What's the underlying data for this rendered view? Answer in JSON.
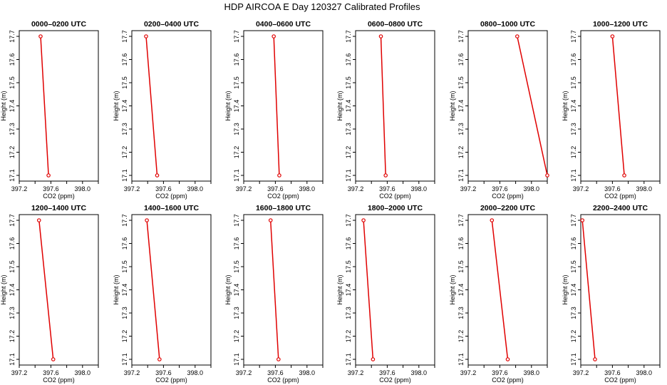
{
  "title": "HDP AIRCOA E  Day 120327  Calibrated Profiles",
  "colors": {
    "series": "#e00000",
    "axis": "#000000",
    "background": "#ffffff"
  },
  "chart_data": [
    {
      "type": "line",
      "title": "0000–0200 UTC",
      "xlabel": "CO2 (ppm)",
      "ylabel": "Height (m)",
      "xlim": [
        397.2,
        398.2
      ],
      "ylim": [
        17.1,
        17.7
      ],
      "xticks": [
        "397.2",
        "397.6",
        "398.0"
      ],
      "yticks": [
        "17.1",
        "17.2",
        "17.3",
        "17.4",
        "17.5",
        "17.6",
        "17.7"
      ],
      "x": [
        397.47,
        397.57
      ],
      "y": [
        17.7,
        17.1
      ]
    },
    {
      "type": "line",
      "title": "0200–0400 UTC",
      "xlabel": "CO2 (ppm)",
      "ylabel": "Height (m)",
      "xlim": [
        397.2,
        398.2
      ],
      "ylim": [
        17.1,
        17.7
      ],
      "xticks": [
        "397.2",
        "397.6",
        "398.0"
      ],
      "yticks": [
        "17.1",
        "17.2",
        "17.3",
        "17.4",
        "17.5",
        "17.6",
        "17.7"
      ],
      "x": [
        397.38,
        397.52
      ],
      "y": [
        17.7,
        17.1
      ]
    },
    {
      "type": "line",
      "title": "0400–0600 UTC",
      "xlabel": "CO2 (ppm)",
      "ylabel": "Height (m)",
      "xlim": [
        397.2,
        398.2
      ],
      "ylim": [
        17.1,
        17.7
      ],
      "xticks": [
        "397.2",
        "397.6",
        "398.0"
      ],
      "yticks": [
        "17.1",
        "17.2",
        "17.3",
        "17.4",
        "17.5",
        "17.6",
        "17.7"
      ],
      "x": [
        397.58,
        397.65
      ],
      "y": [
        17.7,
        17.1
      ]
    },
    {
      "type": "line",
      "title": "0600–0800 UTC",
      "xlabel": "CO2 (ppm)",
      "ylabel": "Height (m)",
      "xlim": [
        397.2,
        398.2
      ],
      "ylim": [
        17.1,
        17.7
      ],
      "xticks": [
        "397.2",
        "397.6",
        "398.0"
      ],
      "yticks": [
        "17.1",
        "17.2",
        "17.3",
        "17.4",
        "17.5",
        "17.6",
        "17.7"
      ],
      "x": [
        397.52,
        397.58
      ],
      "y": [
        17.7,
        17.1
      ]
    },
    {
      "type": "line",
      "title": "0800–1000 UTC",
      "xlabel": "CO2 (ppm)",
      "ylabel": "Height (m)",
      "xlim": [
        397.2,
        398.2
      ],
      "ylim": [
        17.1,
        17.7
      ],
      "xticks": [
        "397.2",
        "397.6",
        "398.0"
      ],
      "yticks": [
        "17.1",
        "17.2",
        "17.3",
        "17.4",
        "17.5",
        "17.6",
        "17.7"
      ],
      "x": [
        397.82,
        398.2
      ],
      "y": [
        17.7,
        17.1
      ]
    },
    {
      "type": "line",
      "title": "1000–1200 UTC",
      "xlabel": "CO2 (ppm)",
      "ylabel": "Height (m)",
      "xlim": [
        397.2,
        398.2
      ],
      "ylim": [
        17.1,
        17.7
      ],
      "xticks": [
        "397.2",
        "397.6",
        "398.0"
      ],
      "yticks": [
        "17.1",
        "17.2",
        "17.3",
        "17.4",
        "17.5",
        "17.6",
        "17.7"
      ],
      "x": [
        397.6,
        397.75
      ],
      "y": [
        17.7,
        17.1
      ]
    },
    {
      "type": "line",
      "title": "1200–1400 UTC",
      "xlabel": "CO2 (ppm)",
      "ylabel": "Height (m)",
      "xlim": [
        397.2,
        398.2
      ],
      "ylim": [
        17.1,
        17.7
      ],
      "xticks": [
        "397.2",
        "397.6",
        "398.0"
      ],
      "yticks": [
        "17.1",
        "17.2",
        "17.3",
        "17.4",
        "17.5",
        "17.6",
        "17.7"
      ],
      "x": [
        397.45,
        397.63
      ],
      "y": [
        17.7,
        17.1
      ]
    },
    {
      "type": "line",
      "title": "1400–1600 UTC",
      "xlabel": "CO2 (ppm)",
      "ylabel": "Height (m)",
      "xlim": [
        397.2,
        398.2
      ],
      "ylim": [
        17.1,
        17.7
      ],
      "xticks": [
        "397.2",
        "397.6",
        "398.0"
      ],
      "yticks": [
        "17.1",
        "17.2",
        "17.3",
        "17.4",
        "17.5",
        "17.6",
        "17.7"
      ],
      "x": [
        397.39,
        397.55
      ],
      "y": [
        17.7,
        17.1
      ]
    },
    {
      "type": "line",
      "title": "1600–1800 UTC",
      "xlabel": "CO2 (ppm)",
      "ylabel": "Height (m)",
      "xlim": [
        397.2,
        398.2
      ],
      "ylim": [
        17.1,
        17.7
      ],
      "xticks": [
        "397.2",
        "397.6",
        "398.0"
      ],
      "yticks": [
        "17.1",
        "17.2",
        "17.3",
        "17.4",
        "17.5",
        "17.6",
        "17.7"
      ],
      "x": [
        397.54,
        397.64
      ],
      "y": [
        17.7,
        17.1
      ]
    },
    {
      "type": "line",
      "title": "1800–2000 UTC",
      "xlabel": "CO2 (ppm)",
      "ylabel": "Height (m)",
      "xlim": [
        397.2,
        398.2
      ],
      "ylim": [
        17.1,
        17.7
      ],
      "xticks": [
        "397.2",
        "397.6",
        "398.0"
      ],
      "yticks": [
        "17.1",
        "17.2",
        "17.3",
        "17.4",
        "17.5",
        "17.6",
        "17.7"
      ],
      "x": [
        397.3,
        397.42
      ],
      "y": [
        17.7,
        17.1
      ]
    },
    {
      "type": "line",
      "title": "2000–2200 UTC",
      "xlabel": "CO2 (ppm)",
      "ylabel": "Height (m)",
      "xlim": [
        397.2,
        398.2
      ],
      "ylim": [
        17.1,
        17.7
      ],
      "xticks": [
        "397.2",
        "397.6",
        "398.0"
      ],
      "yticks": [
        "17.1",
        "17.2",
        "17.3",
        "17.4",
        "17.5",
        "17.6",
        "17.7"
      ],
      "x": [
        397.5,
        397.7
      ],
      "y": [
        17.7,
        17.1
      ]
    },
    {
      "type": "line",
      "title": "2200–2400 UTC",
      "xlabel": "CO2 (ppm)",
      "ylabel": "Height (m)",
      "xlim": [
        397.2,
        398.2
      ],
      "ylim": [
        17.1,
        17.7
      ],
      "xticks": [
        "397.2",
        "397.6",
        "398.0"
      ],
      "yticks": [
        "17.1",
        "17.2",
        "17.3",
        "17.4",
        "17.5",
        "17.6",
        "17.7"
      ],
      "x": [
        397.22,
        397.38
      ],
      "y": [
        17.7,
        17.1
      ]
    }
  ]
}
